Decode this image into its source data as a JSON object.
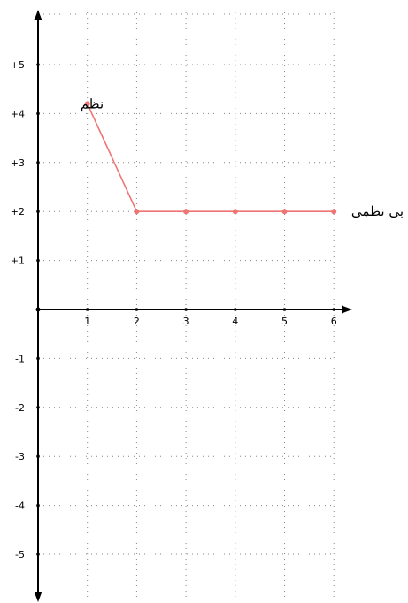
{
  "chart_data": {
    "type": "line",
    "title": "",
    "xlabel": "",
    "ylabel": "",
    "xlim": [
      0,
      6
    ],
    "ylim": [
      -5.5,
      5.5
    ],
    "x_ticks": [
      1,
      2,
      3,
      4,
      5,
      6
    ],
    "x_tick_labels": [
      "1",
      "2",
      "3",
      "4",
      "5",
      "6"
    ],
    "y_ticks": [
      5,
      4,
      3,
      2,
      1,
      -1,
      -2,
      -3,
      -4,
      -5
    ],
    "y_tick_labels": [
      "+5",
      "+4",
      "+3",
      "+2",
      "+1",
      "-1",
      "-2",
      "-3",
      "-4",
      "-5"
    ],
    "grid": true,
    "series": [
      {
        "x": [
          1,
          2,
          3,
          4,
          5,
          6
        ],
        "values": [
          4.2,
          2,
          2,
          2,
          2,
          2
        ],
        "color": "#f07474"
      }
    ],
    "annotations": [
      {
        "text": "نظم",
        "x": 1,
        "y": 4.2,
        "anchor": "left"
      },
      {
        "text": "بی نظمی",
        "x": 6,
        "y": 2,
        "anchor": "right"
      }
    ]
  }
}
